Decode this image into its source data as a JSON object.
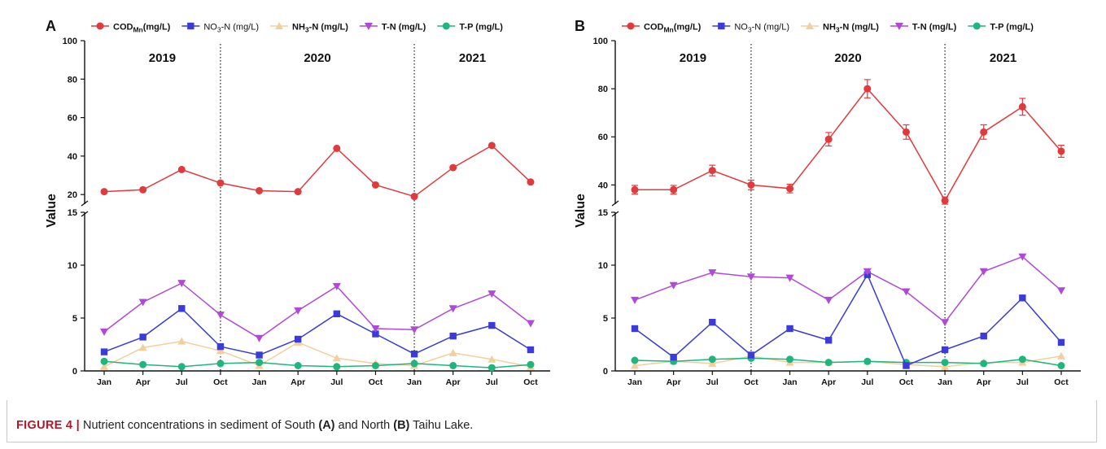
{
  "figure": {
    "caption_label": "FIGURE 4 |",
    "caption_pre": " Nutrient concentrations in sediment of South ",
    "caption_a": "(A)",
    "caption_mid": " and North ",
    "caption_b": "(B)",
    "caption_post": " Taihu Lake."
  },
  "colors": {
    "COD": "#e03a3c",
    "NO3": "#3b3bd9",
    "NH3": "#f2cf9e",
    "TN": "#b048d8",
    "TP": "#1fb57c"
  },
  "chart_data": [
    {
      "panel_label": "A",
      "type": "line",
      "ylabel": "Value",
      "x": [
        "Jan",
        "Apr",
        "Jul",
        "Oct",
        "Jan",
        "Apr",
        "Jul",
        "Oct",
        "Jan",
        "Apr",
        "Jul",
        "Oct"
      ],
      "year_labels": [
        "2019",
        "2020",
        "2021"
      ],
      "broken_axis": true,
      "upper_ylim": [
        15,
        100
      ],
      "upper_ticks": [
        20,
        40,
        60,
        80,
        100
      ],
      "lower_ylim": [
        0,
        15
      ],
      "lower_ticks": [
        0,
        5,
        10,
        15
      ],
      "legend": [
        {
          "key": "COD",
          "prefix": "COD",
          "sub": "Mn",
          "suffix": "(mg/L)",
          "marker": "circle",
          "bold": true
        },
        {
          "key": "NO3",
          "prefix": "NO",
          "sub": "3",
          "suffix": "-N (mg/L)",
          "marker": "square",
          "bold": false
        },
        {
          "key": "NH3",
          "prefix": "NH",
          "sub": "3",
          "suffix": "-N (mg/L)",
          "marker": "triangle-up",
          "bold": true
        },
        {
          "key": "TN",
          "prefix": "T-N (mg/L)",
          "sub": "",
          "suffix": "",
          "marker": "triangle-down",
          "bold": true
        },
        {
          "key": "TP",
          "prefix": "T-P (mg/L)",
          "sub": "",
          "suffix": "",
          "marker": "circle",
          "bold": true
        }
      ],
      "series": [
        {
          "key": "COD",
          "values": [
            21.5,
            22.5,
            33,
            26,
            22,
            21.5,
            44,
            25,
            19,
            34,
            45.5,
            26.5
          ]
        },
        {
          "key": "NO3",
          "values": [
            1.8,
            3.2,
            5.9,
            2.3,
            1.5,
            3.0,
            5.4,
            3.5,
            1.6,
            3.3,
            4.3,
            2.0
          ]
        },
        {
          "key": "NH3",
          "values": [
            0.4,
            2.2,
            2.8,
            1.9,
            0.5,
            2.7,
            1.2,
            0.7,
            0.5,
            1.7,
            1.1,
            0.4
          ]
        },
        {
          "key": "TN",
          "values": [
            3.7,
            6.5,
            8.3,
            5.3,
            3.1,
            5.7,
            8.0,
            4.0,
            3.9,
            5.9,
            7.3,
            4.5
          ]
        },
        {
          "key": "TP",
          "values": [
            0.9,
            0.6,
            0.4,
            0.7,
            0.8,
            0.5,
            0.4,
            0.5,
            0.7,
            0.5,
            0.3,
            0.6
          ]
        }
      ]
    },
    {
      "panel_label": "B",
      "type": "line",
      "ylabel": "Value",
      "x": [
        "Jan",
        "Apr",
        "Jul",
        "Oct",
        "Jan",
        "Apr",
        "Jul",
        "Oct",
        "Jan",
        "Apr",
        "Jul",
        "Oct"
      ],
      "year_labels": [
        "2019",
        "2020",
        "2021"
      ],
      "broken_axis": true,
      "upper_ylim": [
        32,
        100
      ],
      "upper_ticks": [
        40,
        60,
        80,
        100
      ],
      "lower_ylim": [
        0,
        15
      ],
      "lower_ticks": [
        0,
        5,
        10,
        15
      ],
      "legend": [
        {
          "key": "COD",
          "prefix": "COD",
          "sub": "Mn",
          "suffix": "(mg/L)",
          "marker": "circle",
          "bold": true
        },
        {
          "key": "NO3",
          "prefix": "NO",
          "sub": "3",
          "suffix": "-N (mg/L)",
          "marker": "square",
          "bold": false
        },
        {
          "key": "NH3",
          "prefix": "NH",
          "sub": "3",
          "suffix": "-N (mg/L)",
          "marker": "triangle-up",
          "bold": true
        },
        {
          "key": "TN",
          "prefix": "T-N (mg/L)",
          "sub": "",
          "suffix": "",
          "marker": "triangle-down",
          "bold": true
        },
        {
          "key": "TP",
          "prefix": "T-P (mg/L)",
          "sub": "",
          "suffix": "",
          "marker": "circle",
          "bold": true
        }
      ],
      "series": [
        {
          "key": "COD",
          "values": [
            38,
            38,
            46,
            40,
            38.5,
            59,
            80,
            62,
            33.5,
            62,
            72.5,
            54
          ],
          "errors": [
            1.8,
            1.8,
            2.2,
            2.0,
            1.8,
            2.8,
            3.8,
            3.0,
            1.5,
            3.0,
            3.5,
            2.5
          ]
        },
        {
          "key": "NO3",
          "values": [
            4.0,
            1.3,
            4.6,
            1.5,
            4.0,
            2.9,
            9.1,
            0.5,
            2.0,
            3.3,
            6.9,
            2.7
          ]
        },
        {
          "key": "NH3",
          "values": [
            0.5,
            0.9,
            0.7,
            1.4,
            0.8,
            0.8,
            0.9,
            0.6,
            0.4,
            0.8,
            0.8,
            1.4
          ]
        },
        {
          "key": "TN",
          "values": [
            6.7,
            8.1,
            9.3,
            8.9,
            8.8,
            6.7,
            9.4,
            7.5,
            4.6,
            9.4,
            10.8,
            7.6
          ]
        },
        {
          "key": "TP",
          "values": [
            1.0,
            0.9,
            1.1,
            1.2,
            1.1,
            0.8,
            0.9,
            0.8,
            0.8,
            0.7,
            1.1,
            0.5
          ]
        }
      ]
    }
  ]
}
